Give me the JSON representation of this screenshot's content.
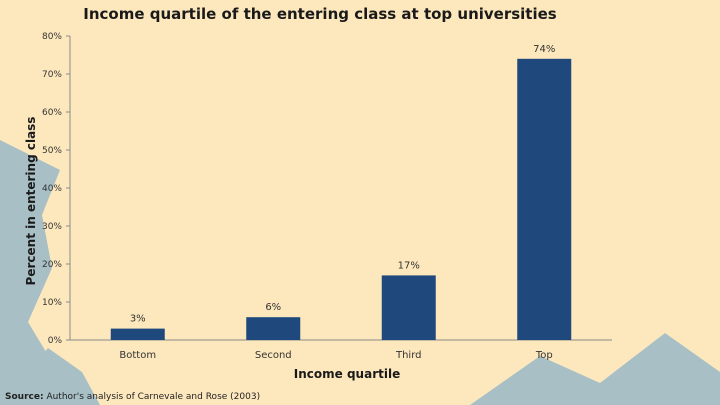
{
  "chart_data": {
    "type": "bar",
    "title": "Income quartile of the entering class at top universities",
    "xlabel": "Income quartile",
    "ylabel": "Percent in entering class",
    "categories": [
      "Bottom",
      "Second",
      "Third",
      "Top"
    ],
    "values": [
      3,
      6,
      17,
      74
    ],
    "data_labels": [
      "3%",
      "6%",
      "17%",
      "74%"
    ],
    "ylim": [
      0,
      80
    ],
    "yticks": [
      0,
      10,
      20,
      30,
      40,
      50,
      60,
      70,
      80
    ],
    "ytick_labels": [
      "0%",
      "10%",
      "20%",
      "30%",
      "40%",
      "50%",
      "60%",
      "70%",
      "80%"
    ],
    "grid": false,
    "legend": "none",
    "bar_color": "#1f497d"
  },
  "source": {
    "prefix": "Source:",
    "text": "Author's analysis of Carnevale and Rose (2003)"
  },
  "colors": {
    "background": "#fde8bd",
    "shape": "#a7bfc5"
  }
}
